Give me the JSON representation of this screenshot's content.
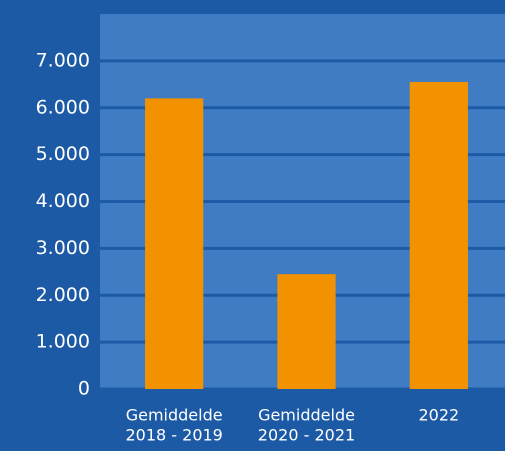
{
  "chart_data": {
    "type": "bar",
    "categories": [
      [
        "Gemiddelde",
        "2018 - 2019"
      ],
      [
        "Gemiddelde",
        "2020 - 2021"
      ],
      [
        "2022"
      ]
    ],
    "values": [
      6200,
      2450,
      6550
    ],
    "color": "#f39200",
    "ylim": [
      0,
      8000
    ],
    "yticks": [
      0,
      {
        "value": 1000,
        "label": "1.000"
      },
      {
        "value": 2000,
        "label": "2.000"
      },
      {
        "value": 3000,
        "label": "3.000"
      },
      {
        "value": 4000,
        "label": "4.000"
      },
      {
        "value": 5000,
        "label": "5.000"
      },
      {
        "value": 6000,
        "label": "6.000"
      },
      {
        "value": 7000,
        "label": "7.000"
      }
    ],
    "grid": true
  }
}
